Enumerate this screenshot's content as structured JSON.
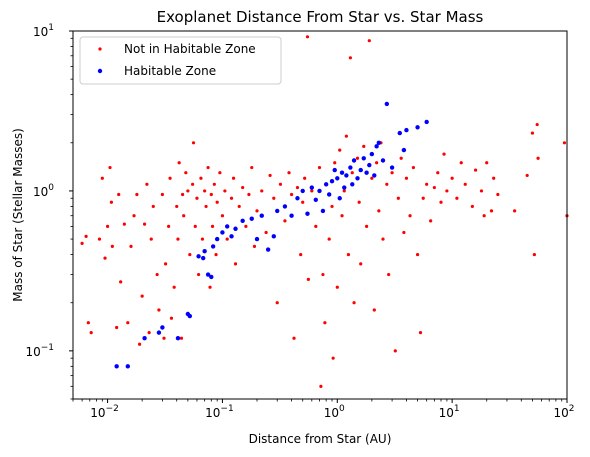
{
  "chart_data": {
    "type": "scatter",
    "title": "Exoplanet Distance From Star vs. Star Mass",
    "xlabel": "Distance from Star (AU)",
    "ylabel": "Mass of Star (Stellar Masses)",
    "xscale": "log",
    "yscale": "log",
    "xlim": [
      0.005,
      100
    ],
    "ylim": [
      0.05,
      10
    ],
    "grid": false,
    "legend_position": "top-left",
    "x_ticks": [
      {
        "value": 0.01,
        "base": "10",
        "exp": "−2"
      },
      {
        "value": 0.1,
        "base": "10",
        "exp": "−1"
      },
      {
        "value": 1,
        "base": "10",
        "exp": "0"
      },
      {
        "value": 10,
        "base": "10",
        "exp": "1"
      },
      {
        "value": 100,
        "base": "10",
        "exp": "2"
      }
    ],
    "y_ticks": [
      {
        "value": 0.1,
        "base": "10",
        "exp": "−1"
      },
      {
        "value": 1,
        "base": "10",
        "exp": "0"
      },
      {
        "value": 10,
        "base": "10",
        "exp": "1"
      }
    ],
    "series": [
      {
        "name": "Not in Habitable Zone",
        "color": "#ff0000",
        "marker_size": 1.6,
        "points": [
          [
            0.006,
            0.47
          ],
          [
            0.0065,
            0.52
          ],
          [
            0.0068,
            0.15
          ],
          [
            0.0072,
            0.13
          ],
          [
            0.0085,
            0.5
          ],
          [
            0.009,
            1.2
          ],
          [
            0.0095,
            0.38
          ],
          [
            0.01,
            0.6
          ],
          [
            0.0105,
            1.4
          ],
          [
            0.0108,
            0.85
          ],
          [
            0.011,
            0.45
          ],
          [
            0.012,
            0.14
          ],
          [
            0.0125,
            0.95
          ],
          [
            0.013,
            0.27
          ],
          [
            0.014,
            0.62
          ],
          [
            0.015,
            0.15
          ],
          [
            0.016,
            0.45
          ],
          [
            0.017,
            0.7
          ],
          [
            0.018,
            0.95
          ],
          [
            0.019,
            0.11
          ],
          [
            0.02,
            0.22
          ],
          [
            0.021,
            0.62
          ],
          [
            0.022,
            1.1
          ],
          [
            0.023,
            0.13
          ],
          [
            0.024,
            0.5
          ],
          [
            0.025,
            0.8
          ],
          [
            0.027,
            0.3
          ],
          [
            0.028,
            0.18
          ],
          [
            0.03,
            0.95
          ],
          [
            0.031,
            0.12
          ],
          [
            0.032,
            0.35
          ],
          [
            0.034,
            0.6
          ],
          [
            0.035,
            1.2
          ],
          [
            0.036,
            0.16
          ],
          [
            0.038,
            0.25
          ],
          [
            0.04,
            0.8
          ],
          [
            0.041,
            0.5
          ],
          [
            0.042,
            1.5
          ],
          [
            0.044,
            0.12
          ],
          [
            0.045,
            0.95
          ],
          [
            0.046,
            0.7
          ],
          [
            0.048,
            1.3
          ],
          [
            0.05,
            1.0
          ],
          [
            0.052,
            0.4
          ],
          [
            0.055,
            1.1
          ],
          [
            0.056,
            2.0
          ],
          [
            0.058,
            0.6
          ],
          [
            0.06,
            0.9
          ],
          [
            0.062,
            0.3
          ],
          [
            0.065,
            1.2
          ],
          [
            0.067,
            0.5
          ],
          [
            0.07,
            1.0
          ],
          [
            0.072,
            0.8
          ],
          [
            0.075,
            1.4
          ],
          [
            0.078,
            0.25
          ],
          [
            0.08,
            0.95
          ],
          [
            0.082,
            0.6
          ],
          [
            0.085,
            1.1
          ],
          [
            0.088,
            0.4
          ],
          [
            0.09,
            0.85
          ],
          [
            0.095,
            1.3
          ],
          [
            0.1,
            0.7
          ],
          [
            0.105,
            1.0
          ],
          [
            0.11,
            0.5
          ],
          [
            0.12,
            0.9
          ],
          [
            0.125,
            1.2
          ],
          [
            0.13,
            0.35
          ],
          [
            0.14,
            0.8
          ],
          [
            0.15,
            1.05
          ],
          [
            0.16,
            0.6
          ],
          [
            0.17,
            0.95
          ],
          [
            0.18,
            1.4
          ],
          [
            0.19,
            0.45
          ],
          [
            0.2,
            0.75
          ],
          [
            0.22,
            1.0
          ],
          [
            0.24,
            0.55
          ],
          [
            0.26,
            1.25
          ],
          [
            0.28,
            0.9
          ],
          [
            0.3,
            0.2
          ],
          [
            0.32,
            1.1
          ],
          [
            0.35,
            0.65
          ],
          [
            0.38,
            1.3
          ],
          [
            0.4,
            0.95
          ],
          [
            0.42,
            0.12
          ],
          [
            0.45,
            1.05
          ],
          [
            0.48,
            0.4
          ],
          [
            0.5,
            0.85
          ],
          [
            0.52,
            1.2
          ],
          [
            0.55,
            9.2
          ],
          [
            0.56,
            0.28
          ],
          [
            0.6,
            1.0
          ],
          [
            0.65,
            0.6
          ],
          [
            0.7,
            1.4
          ],
          [
            0.72,
            0.06
          ],
          [
            0.75,
            0.3
          ],
          [
            0.78,
            0.15
          ],
          [
            0.8,
            1.1
          ],
          [
            0.85,
            0.5
          ],
          [
            0.9,
            0.8
          ],
          [
            0.92,
            0.09
          ],
          [
            0.95,
            1.5
          ],
          [
            1.0,
            0.25
          ],
          [
            1.05,
            1.8
          ],
          [
            1.1,
            0.7
          ],
          [
            1.15,
            1.0
          ],
          [
            1.2,
            2.2
          ],
          [
            1.25,
            0.4
          ],
          [
            1.3,
            6.8
          ],
          [
            1.35,
            1.3
          ],
          [
            1.4,
            0.2
          ],
          [
            1.5,
            1.6
          ],
          [
            1.55,
            0.85
          ],
          [
            1.6,
            0.35
          ],
          [
            1.7,
            1.9
          ],
          [
            1.8,
            0.6
          ],
          [
            1.9,
            8.7
          ],
          [
            2.0,
            1.2
          ],
          [
            2.1,
            0.18
          ],
          [
            2.2,
            1.5
          ],
          [
            2.3,
            0.75
          ],
          [
            2.4,
            2.0
          ],
          [
            2.5,
            0.5
          ],
          [
            2.7,
            1.1
          ],
          [
            2.8,
            0.3
          ],
          [
            3.0,
            1.3
          ],
          [
            3.2,
            0.1
          ],
          [
            3.4,
            0.9
          ],
          [
            3.6,
            1.6
          ],
          [
            3.8,
            0.55
          ],
          [
            4.0,
            1.2
          ],
          [
            4.3,
            0.7
          ],
          [
            4.6,
            1.4
          ],
          [
            5.0,
            0.4
          ],
          [
            5.3,
            0.13
          ],
          [
            5.6,
            0.9
          ],
          [
            6.0,
            1.1
          ],
          [
            6.5,
            0.65
          ],
          [
            7.0,
            1.05
          ],
          [
            7.5,
            1.3
          ],
          [
            8.0,
            0.85
          ],
          [
            8.5,
            1.7
          ],
          [
            9.0,
            1.0
          ],
          [
            10,
            1.2
          ],
          [
            11,
            0.9
          ],
          [
            12,
            1.5
          ],
          [
            13,
            1.1
          ],
          [
            15,
            0.8
          ],
          [
            16,
            1.35
          ],
          [
            18,
            1.0
          ],
          [
            19,
            0.7
          ],
          [
            20,
            1.5
          ],
          [
            22,
            0.75
          ],
          [
            23,
            1.2
          ],
          [
            25,
            0.95
          ],
          [
            35,
            0.75
          ],
          [
            45,
            1.25
          ],
          [
            50,
            2.3
          ],
          [
            52,
            0.4
          ],
          [
            55,
            2.6
          ],
          [
            56,
            1.6
          ],
          [
            95,
            2.0
          ],
          [
            100,
            0.7
          ]
        ]
      },
      {
        "name": "Habitable Zone",
        "color": "#0000ff",
        "marker_size": 2.2,
        "points": [
          [
            0.012,
            0.08
          ],
          [
            0.015,
            0.08
          ],
          [
            0.021,
            0.12
          ],
          [
            0.028,
            0.13
          ],
          [
            0.03,
            0.14
          ],
          [
            0.041,
            0.12
          ],
          [
            0.05,
            0.17
          ],
          [
            0.052,
            0.165
          ],
          [
            0.062,
            0.39
          ],
          [
            0.068,
            0.38
          ],
          [
            0.07,
            0.42
          ],
          [
            0.075,
            0.3
          ],
          [
            0.08,
            0.29
          ],
          [
            0.083,
            0.45
          ],
          [
            0.09,
            0.5
          ],
          [
            0.1,
            0.55
          ],
          [
            0.11,
            0.6
          ],
          [
            0.12,
            0.52
          ],
          [
            0.13,
            0.58
          ],
          [
            0.15,
            0.65
          ],
          [
            0.18,
            0.67
          ],
          [
            0.2,
            0.5
          ],
          [
            0.22,
            0.7
          ],
          [
            0.25,
            0.43
          ],
          [
            0.28,
            0.52
          ],
          [
            0.3,
            0.75
          ],
          [
            0.35,
            0.8
          ],
          [
            0.4,
            0.7
          ],
          [
            0.45,
            0.9
          ],
          [
            0.5,
            1.0
          ],
          [
            0.55,
            0.72
          ],
          [
            0.6,
            1.05
          ],
          [
            0.65,
            0.88
          ],
          [
            0.7,
            1.0
          ],
          [
            0.75,
            0.75
          ],
          [
            0.8,
            1.1
          ],
          [
            0.85,
            0.95
          ],
          [
            0.9,
            1.15
          ],
          [
            1.0,
            1.2
          ],
          [
            1.05,
            0.9
          ],
          [
            1.1,
            1.3
          ],
          [
            1.15,
            1.05
          ],
          [
            1.2,
            1.25
          ],
          [
            1.3,
            1.4
          ],
          [
            1.35,
            1.1
          ],
          [
            1.4,
            1.55
          ],
          [
            1.5,
            1.2
          ],
          [
            1.6,
            1.35
          ],
          [
            1.7,
            1.6
          ],
          [
            1.8,
            1.3
          ],
          [
            1.9,
            1.45
          ],
          [
            2.0,
            1.7
          ],
          [
            2.1,
            1.25
          ],
          [
            2.2,
            1.9
          ],
          [
            2.3,
            2.0
          ],
          [
            2.5,
            1.55
          ],
          [
            2.7,
            3.5
          ],
          [
            3.0,
            1.4
          ],
          [
            3.5,
            2.3
          ],
          [
            4.0,
            2.4
          ],
          [
            5.0,
            2.5
          ],
          [
            6.0,
            2.7
          ],
          [
            3.8,
            1.8
          ],
          [
            0.95,
            1.35
          ]
        ]
      }
    ]
  }
}
